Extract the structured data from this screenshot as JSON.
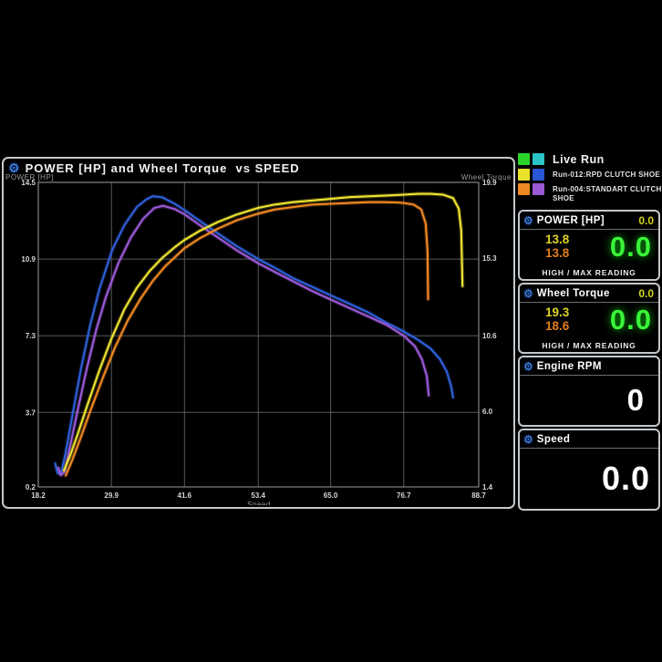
{
  "colors": {
    "gear_blue": "#4b8ff0",
    "value_yellow": "#ddd324",
    "value_orange": "#e07d1e",
    "value_green": "#39f539",
    "panel_border": "#c4c8cc",
    "grid": "#55595d"
  },
  "legend": {
    "items": [
      {
        "label": "Live Run",
        "colors": [
          "#2ad42a",
          "#2ac4c4"
        ]
      },
      {
        "label": "Run-012:RPD CLUTCH SHOE",
        "colors": [
          "#e8e22a",
          "#2a56d4"
        ]
      },
      {
        "label": "Run-004:STANDART CLUTCH SHOE",
        "colors": [
          "#ee8822",
          "#9b59d6"
        ]
      }
    ]
  },
  "panels": {
    "power": {
      "title": "POWER [HP]",
      "header_value": "0.0",
      "high_run012": "13.8",
      "high_run004": "13.8",
      "current": "0.0",
      "footer": "HIGH / MAX READING"
    },
    "torque": {
      "title": "Wheel Torque",
      "header_value": "0.0",
      "high_run012": "19.3",
      "high_run004": "18.6",
      "current": "0.0",
      "footer": "HIGH / MAX READING"
    },
    "rpm": {
      "title": "Engine RPM",
      "current": "0"
    },
    "speed": {
      "title": "Speed",
      "current": "0.0"
    }
  },
  "chart_data": {
    "type": "line",
    "title": "POWER [HP] and Wheel Torque  vs SPEED",
    "xlabel": "Speed",
    "y_left_label": "POWER [HP]",
    "y_right_label": "Wheel Torque",
    "xlim": [
      18.2,
      88.7
    ],
    "y_left_lim": [
      0.2,
      14.5
    ],
    "y_right_lim": [
      1.4,
      19.9
    ],
    "x_ticks": [
      18.2,
      29.9,
      41.6,
      53.4,
      65.0,
      76.7,
      88.7
    ],
    "y_left_ticks": [
      0.2,
      3.7,
      7.3,
      10.9,
      14.5
    ],
    "y_right_ticks": [
      1.4,
      6.0,
      10.6,
      15.3,
      19.9
    ],
    "grid": true,
    "legend_position": "top-right-outside",
    "series": [
      {
        "name": "Run-012:RPD CLUTCH SHOE — Power",
        "axis": "left",
        "color": "#2e5fd8",
        "points": [
          [
            20.9,
            1.3
          ],
          [
            21.3,
            0.85
          ],
          [
            21.8,
            0.8
          ],
          [
            22.5,
            1.7
          ],
          [
            23.5,
            3.3
          ],
          [
            25,
            5.7
          ],
          [
            26.5,
            7.8
          ],
          [
            28,
            9.5
          ],
          [
            30,
            11.3
          ],
          [
            32,
            12.5
          ],
          [
            34,
            13.35
          ],
          [
            35.5,
            13.7
          ],
          [
            36.5,
            13.85
          ],
          [
            38,
            13.8
          ],
          [
            40,
            13.5
          ],
          [
            41.6,
            13.2
          ],
          [
            44,
            12.7
          ],
          [
            47,
            12.1
          ],
          [
            50,
            11.5
          ],
          [
            53.4,
            10.9
          ],
          [
            56,
            10.5
          ],
          [
            59,
            10.0
          ],
          [
            62,
            9.6
          ],
          [
            65,
            9.2
          ],
          [
            68,
            8.8
          ],
          [
            71,
            8.4
          ],
          [
            74,
            7.9
          ],
          [
            76.7,
            7.5
          ],
          [
            79,
            7.1
          ],
          [
            81,
            6.7
          ],
          [
            82.5,
            6.2
          ],
          [
            83.6,
            5.6
          ],
          [
            84.3,
            4.9
          ],
          [
            84.6,
            4.4
          ]
        ]
      },
      {
        "name": "Run-004:STANDART CLUTCH SHOE — Power",
        "axis": "left",
        "color": "#9b59d6",
        "points": [
          [
            21.4,
            1.1
          ],
          [
            21.8,
            0.75
          ],
          [
            22.4,
            0.9
          ],
          [
            23.2,
            2.0
          ],
          [
            24.5,
            3.8
          ],
          [
            26,
            5.8
          ],
          [
            27.5,
            7.6
          ],
          [
            29,
            9.1
          ],
          [
            31,
            10.7
          ],
          [
            33,
            11.9
          ],
          [
            35,
            12.8
          ],
          [
            36.8,
            13.3
          ],
          [
            38.2,
            13.4
          ],
          [
            40,
            13.25
          ],
          [
            41.6,
            13.0
          ],
          [
            44,
            12.5
          ],
          [
            47,
            11.9
          ],
          [
            50,
            11.3
          ],
          [
            53.4,
            10.7
          ],
          [
            56,
            10.3
          ],
          [
            59,
            9.85
          ],
          [
            62,
            9.4
          ],
          [
            65,
            9.0
          ],
          [
            68,
            8.6
          ],
          [
            71,
            8.2
          ],
          [
            74,
            7.8
          ],
          [
            76.7,
            7.3
          ],
          [
            78.5,
            6.8
          ],
          [
            79.6,
            6.2
          ],
          [
            80.4,
            5.4
          ],
          [
            80.7,
            4.5
          ]
        ]
      },
      {
        "name": "Run-012:RPD CLUTCH SHOE — Wheel Torque",
        "axis": "right",
        "color": "#eee431",
        "points": [
          [
            22.3,
            2.4
          ],
          [
            23.3,
            3.3
          ],
          [
            24.5,
            4.6
          ],
          [
            26,
            6.3
          ],
          [
            28,
            8.5
          ],
          [
            29.9,
            10.4
          ],
          [
            32,
            12.2
          ],
          [
            34,
            13.5
          ],
          [
            36,
            14.5
          ],
          [
            38,
            15.3
          ],
          [
            40,
            15.95
          ],
          [
            41.6,
            16.4
          ],
          [
            44,
            16.95
          ],
          [
            47,
            17.5
          ],
          [
            50,
            17.95
          ],
          [
            53.4,
            18.35
          ],
          [
            56,
            18.55
          ],
          [
            59,
            18.7
          ],
          [
            62,
            18.8
          ],
          [
            65,
            18.9
          ],
          [
            68,
            19.0
          ],
          [
            71,
            19.05
          ],
          [
            74,
            19.1
          ],
          [
            76.7,
            19.15
          ],
          [
            79,
            19.2
          ],
          [
            81,
            19.2
          ],
          [
            83,
            19.15
          ],
          [
            84.6,
            18.95
          ],
          [
            85.5,
            18.3
          ],
          [
            85.9,
            17.0
          ],
          [
            86.1,
            13.6
          ]
        ]
      },
      {
        "name": "Run-004:STANDART CLUTCH SHOE — Wheel Torque",
        "axis": "right",
        "color": "#ee8722",
        "points": [
          [
            22.6,
            2.1
          ],
          [
            23.6,
            3.0
          ],
          [
            25,
            4.4
          ],
          [
            26.5,
            6.0
          ],
          [
            28.5,
            8.0
          ],
          [
            30.5,
            9.9
          ],
          [
            32.5,
            11.5
          ],
          [
            34.5,
            12.8
          ],
          [
            36.5,
            13.9
          ],
          [
            38.5,
            14.8
          ],
          [
            41.6,
            15.9
          ],
          [
            44,
            16.5
          ],
          [
            47,
            17.1
          ],
          [
            50,
            17.6
          ],
          [
            53.4,
            18.0
          ],
          [
            56,
            18.25
          ],
          [
            59,
            18.4
          ],
          [
            62,
            18.55
          ],
          [
            65,
            18.6
          ],
          [
            68,
            18.65
          ],
          [
            71,
            18.7
          ],
          [
            73.5,
            18.7
          ],
          [
            75.5,
            18.68
          ],
          [
            76.7,
            18.65
          ],
          [
            78.3,
            18.55
          ],
          [
            79.5,
            18.25
          ],
          [
            80.2,
            17.4
          ],
          [
            80.5,
            15.8
          ],
          [
            80.6,
            12.8
          ]
        ]
      }
    ]
  }
}
